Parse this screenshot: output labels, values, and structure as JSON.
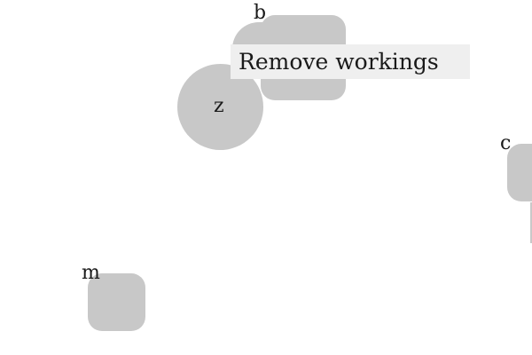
{
  "nodes": {
    "b": {
      "label": "b"
    },
    "z": {
      "label": "z"
    },
    "c": {
      "label": "c"
    },
    "m": {
      "label": "m"
    }
  },
  "context_menu": {
    "items": [
      {
        "label": "Remove workings"
      }
    ]
  },
  "colors": {
    "background": "#ffffff",
    "node_fill": "#c8c8c8",
    "menu_background": "#efefef",
    "text": "#1a1a1a"
  }
}
